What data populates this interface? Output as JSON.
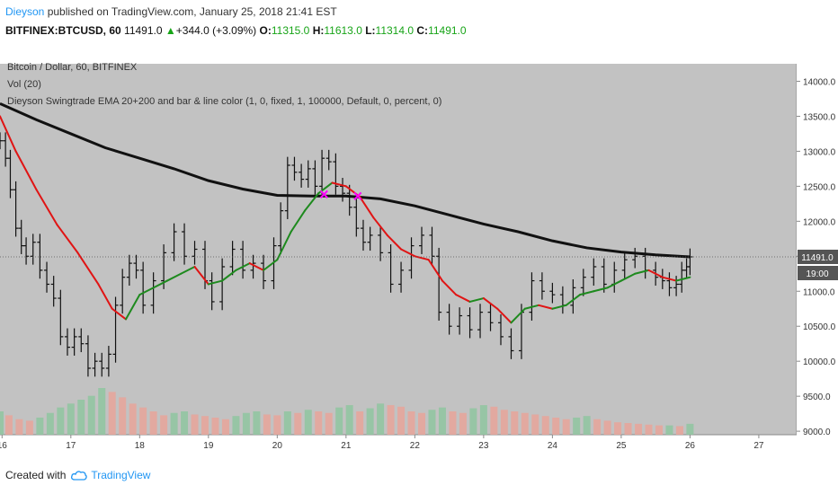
{
  "header": {
    "author": "Dieyson",
    "published": "published on TradingView.com, January 25, 2018 21:41 EST",
    "symbol": "BITFINEX:BTCUSD, 60",
    "last": "11491.0",
    "up_arrow": "▲",
    "change": "+344.0 (+3.09%)",
    "o_label": "O:",
    "o_value": "11315.0",
    "h_label": "H:",
    "h_value": "11613.0",
    "l_label": "L:",
    "l_value": "11314.0",
    "c_label": "C:",
    "c_value": "11491.0"
  },
  "legend": {
    "line1": "Bitcoin / Dollar, 60, BITFINEX",
    "line2": "Vol (20)",
    "line3": "Dieyson Swingtrade EMA 20+200 and bar & line color (1, 0, fixed, 1, 100000, Default, 0, percent, 0)"
  },
  "footer": {
    "created_with": "Created with",
    "brand": "TradingView"
  },
  "colors": {
    "plot_bg": "#c2c2c2",
    "ema_fast_up": "#1e8a1e",
    "ema_fast_down": "#e01414",
    "ema_slow": "#111111",
    "cross_marker": "#ff00ff",
    "price_tag_bg": "#555555"
  },
  "chart_data": {
    "type": "line",
    "title": "Bitcoin / Dollar, 60, BITFINEX",
    "x_ticks": [
      "16",
      "17",
      "18",
      "19",
      "20",
      "21",
      "22",
      "23",
      "24",
      "25",
      "26",
      "27"
    ],
    "y_ticks": [
      9000.0,
      9500.0,
      10000.0,
      10500.0,
      11000.0,
      11500.0,
      12000.0,
      12500.0,
      13000.0,
      13500.0,
      14000.0
    ],
    "ylim": [
      8950,
      14250
    ],
    "xlim": [
      15.97,
      27.55
    ],
    "last_price": {
      "value": 11491.0,
      "label": "11491.0",
      "time_label": "19:00"
    },
    "series": [
      {
        "name": "Price",
        "x": [
          15.97,
          16.05,
          16.12,
          16.2,
          16.28,
          16.35,
          16.45,
          16.55,
          16.65,
          16.75,
          16.85,
          16.95,
          17.05,
          17.15,
          17.25,
          17.35,
          17.45,
          17.55,
          17.65,
          17.75,
          17.85,
          17.95,
          18.05,
          18.2,
          18.35,
          18.5,
          18.65,
          18.8,
          18.95,
          19.05,
          19.2,
          19.35,
          19.5,
          19.65,
          19.8,
          19.95,
          20.05,
          20.15,
          20.25,
          20.35,
          20.45,
          20.55,
          20.65,
          20.75,
          20.85,
          20.95,
          21.05,
          21.15,
          21.25,
          21.35,
          21.5,
          21.65,
          21.8,
          21.95,
          22.1,
          22.25,
          22.35,
          22.5,
          22.65,
          22.8,
          22.95,
          23.1,
          23.25,
          23.4,
          23.55,
          23.7,
          23.85,
          24.0,
          24.15,
          24.3,
          24.45,
          24.6,
          24.75,
          24.9,
          25.05,
          25.2,
          25.35,
          25.5,
          25.6,
          25.7,
          25.8,
          25.88,
          25.95,
          26.0
        ],
        "values": [
          13150,
          12900,
          12450,
          11900,
          11650,
          11500,
          11700,
          11300,
          11100,
          10900,
          10350,
          10200,
          10350,
          10250,
          9900,
          10000,
          9900,
          10100,
          10800,
          11200,
          11400,
          11300,
          10800,
          11150,
          11550,
          11850,
          11500,
          11600,
          11150,
          10850,
          11350,
          11600,
          11300,
          11400,
          11150,
          11650,
          12150,
          12800,
          12700,
          12600,
          12750,
          12500,
          12900,
          12850,
          12500,
          12400,
          12200,
          11900,
          11700,
          11800,
          11550,
          11100,
          11300,
          11650,
          11800,
          11500,
          10700,
          10500,
          10650,
          10450,
          10700,
          10550,
          10350,
          10150,
          10700,
          11150,
          11000,
          10950,
          10800,
          11050,
          11200,
          11350,
          11100,
          11300,
          11450,
          11500,
          11300,
          11200,
          11150,
          11050,
          11100,
          11300,
          11350,
          11491
        ]
      },
      {
        "name": "EMA 20",
        "x": [
          15.97,
          16.2,
          16.5,
          16.8,
          17.1,
          17.4,
          17.6,
          17.8,
          18.0,
          18.2,
          18.4,
          18.6,
          18.8,
          19.0,
          19.2,
          19.4,
          19.6,
          19.8,
          20.0,
          20.2,
          20.4,
          20.6,
          20.8,
          21.0,
          21.2,
          21.4,
          21.6,
          21.8,
          22.0,
          22.2,
          22.4,
          22.6,
          22.8,
          23.0,
          23.2,
          23.4,
          23.6,
          23.8,
          24.0,
          24.2,
          24.4,
          24.6,
          24.8,
          25.0,
          25.2,
          25.4,
          25.6,
          25.8,
          26.0
        ],
        "values": [
          13500,
          13000,
          12450,
          11950,
          11550,
          11100,
          10750,
          10600,
          10950,
          11050,
          11150,
          11250,
          11350,
          11100,
          11150,
          11300,
          11400,
          11300,
          11450,
          11850,
          12150,
          12400,
          12550,
          12500,
          12350,
          12050,
          11800,
          11600,
          11500,
          11450,
          11150,
          10950,
          10850,
          10900,
          10750,
          10550,
          10750,
          10800,
          10750,
          10800,
          10950,
          11000,
          11050,
          11150,
          11250,
          11300,
          11200,
          11150,
          11200
        ],
        "color_rule": "green when rising, red when falling"
      },
      {
        "name": "EMA 200",
        "x": [
          15.97,
          16.5,
          17.0,
          17.5,
          18.0,
          18.5,
          19.0,
          19.5,
          20.0,
          20.5,
          21.0,
          21.5,
          22.0,
          22.5,
          23.0,
          23.5,
          24.0,
          24.5,
          25.0,
          25.5,
          26.0
        ],
        "values": [
          13680,
          13450,
          13250,
          13050,
          12900,
          12750,
          12580,
          12460,
          12370,
          12360,
          12360,
          12320,
          12220,
          12090,
          11960,
          11850,
          11720,
          11620,
          11560,
          11520,
          11491
        ]
      }
    ],
    "volume": {
      "name": "Vol (20)",
      "x": [
        15.97,
        16.1,
        16.25,
        16.4,
        16.55,
        16.7,
        16.85,
        17.0,
        17.15,
        17.3,
        17.45,
        17.6,
        17.75,
        17.9,
        18.05,
        18.2,
        18.35,
        18.5,
        18.65,
        18.8,
        18.95,
        19.1,
        19.25,
        19.4,
        19.55,
        19.7,
        19.85,
        20.0,
        20.15,
        20.3,
        20.45,
        20.6,
        20.75,
        20.9,
        21.05,
        21.2,
        21.35,
        21.5,
        21.65,
        21.8,
        21.95,
        22.1,
        22.25,
        22.4,
        22.55,
        22.7,
        22.85,
        23.0,
        23.15,
        23.3,
        23.45,
        23.6,
        23.75,
        23.9,
        24.05,
        24.2,
        24.35,
        24.5,
        24.65,
        24.8,
        24.95,
        25.1,
        25.25,
        25.4,
        25.55,
        25.7,
        25.85,
        26.0
      ],
      "values": [
        30,
        25,
        20,
        18,
        22,
        28,
        35,
        40,
        45,
        50,
        60,
        55,
        48,
        40,
        35,
        30,
        25,
        28,
        30,
        26,
        24,
        22,
        20,
        24,
        28,
        30,
        26,
        25,
        30,
        28,
        32,
        30,
        28,
        35,
        38,
        30,
        34,
        40,
        38,
        36,
        30,
        28,
        32,
        35,
        30,
        28,
        34,
        38,
        36,
        32,
        30,
        28,
        26,
        24,
        22,
        20,
        22,
        24,
        20,
        18,
        16,
        15,
        14,
        13,
        12,
        12,
        11,
        14
      ]
    },
    "cross_markers": [
      {
        "x": 20.68,
        "y": 12380,
        "label": "×"
      },
      {
        "x": 21.17,
        "y": 12360,
        "label": "×"
      }
    ]
  }
}
